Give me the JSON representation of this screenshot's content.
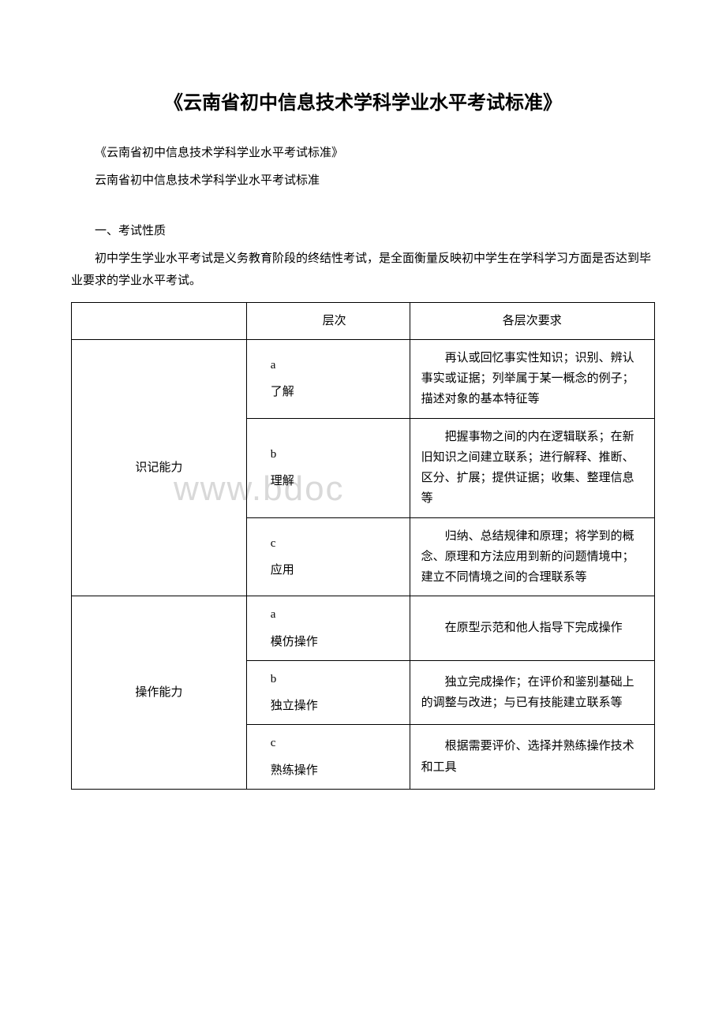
{
  "watermark": "www.bdoc",
  "title": "《云南省初中信息技术学科学业水平考试标准》",
  "subtitle1": "《云南省初中信息技术学科学业水平考试标准》",
  "subtitle2": "云南省初中信息技术学科学业水平考试标准",
  "section1_heading": "一、考试性质",
  "section1_body": "初中学生学业水平考试是义务教育阶段的终结性考试，是全面衡量反映初中学生在学科学习方面是否达到毕业要求的学业水平考试。",
  "table": {
    "header": {
      "col1": "",
      "col2": "层次",
      "col3": "各层次要求"
    },
    "groups": [
      {
        "category": "识记能力",
        "rows": [
          {
            "level_letter": "a",
            "level_name": "了解",
            "requirement": "再认或回忆事实性知识；识别、辨认事实或证据；列举属于某一概念的例子；描述对象的基本特征等"
          },
          {
            "level_letter": "b",
            "level_name": "理解",
            "requirement": "把握事物之间的内在逻辑联系；在新旧知识之间建立联系；进行解释、推断、区分、扩展；提供证据；收集、整理信息等"
          },
          {
            "level_letter": "c",
            "level_name": "应用",
            "requirement": "归纳、总结规律和原理；将学到的概念、原理和方法应用到新的问题情境中；建立不同情境之间的合理联系等"
          }
        ]
      },
      {
        "category": "操作能力",
        "rows": [
          {
            "level_letter": "a",
            "level_name": "模仿操作",
            "requirement": "在原型示范和他人指导下完成操作"
          },
          {
            "level_letter": "b",
            "level_name": "独立操作",
            "requirement": "独立完成操作；在评价和鉴别基础上的调整与改进；与已有技能建立联系等"
          },
          {
            "level_letter": "c",
            "level_name": "熟练操作",
            "requirement": "根据需要评价、选择并熟练操作技术和工具"
          }
        ]
      }
    ]
  }
}
